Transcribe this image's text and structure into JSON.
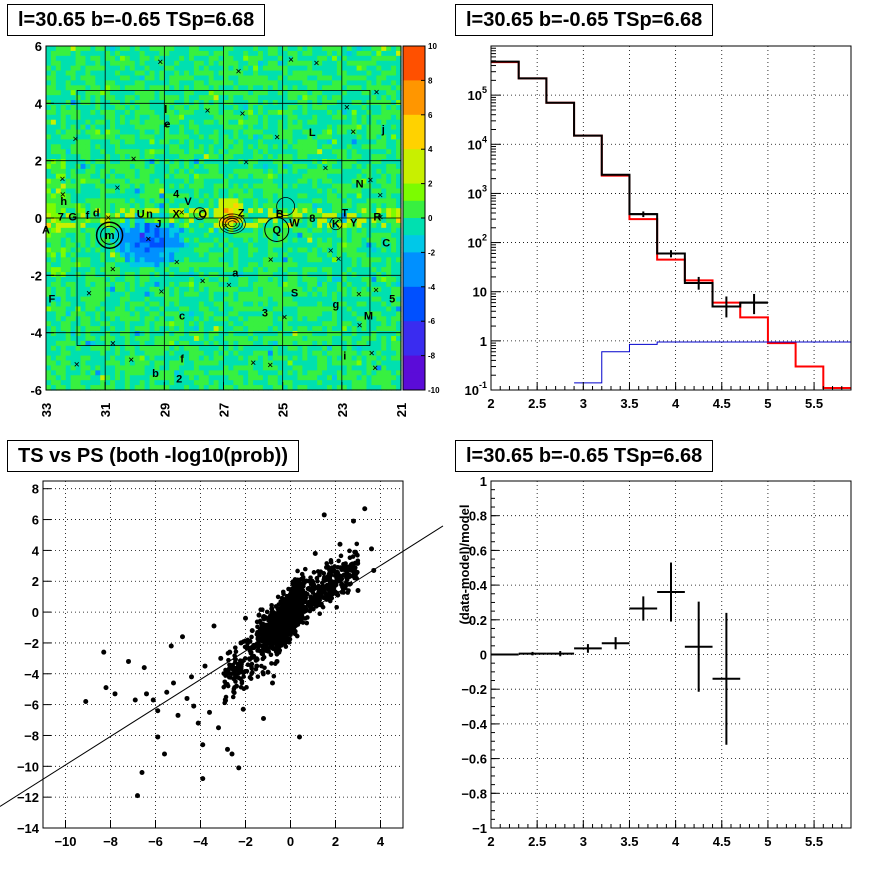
{
  "titles": {
    "p1": "l=30.65 b=-0.65 TSp=6.68",
    "p2": "l=30.65 b=-0.65 TSp=6.68",
    "p3": "TS vs PS (both -log10(prob))",
    "p4": "l=30.65 b=-0.65 TSp=6.68"
  },
  "colors": {
    "frame": "#000000",
    "grid": "#000000",
    "red": "#ff0000",
    "blue": "#0000cc",
    "bg": "#ffffff"
  },
  "chart_data": [
    {
      "type": "heatmap",
      "xlim": [
        33,
        21
      ],
      "ylim": [
        -6,
        6
      ],
      "x_ticks": [
        "33",
        "31",
        "29",
        "27",
        "25",
        "23",
        "21"
      ],
      "y_ticks": [
        "6",
        "4",
        "2",
        "0",
        "-2",
        "-4",
        "-6"
      ],
      "z_range": [
        -10,
        10
      ],
      "z_ticks": [
        "10",
        "8",
        "6",
        "4",
        "2",
        "0",
        "-2",
        "-4",
        "-6",
        "-8",
        "-10"
      ],
      "source_labels": [
        {
          "t": "A",
          "x": 33.0,
          "y": -0.4
        },
        {
          "t": "7",
          "x": 32.5,
          "y": 0.05
        },
        {
          "t": "G",
          "x": 32.1,
          "y": 0.05
        },
        {
          "t": "h",
          "x": 32.4,
          "y": 0.6
        },
        {
          "t": "f",
          "x": 31.6,
          "y": 0.1
        },
        {
          "t": "d",
          "x": 31.3,
          "y": 0.2
        },
        {
          "t": "m",
          "x": 30.85,
          "y": -0.6
        },
        {
          "t": "U",
          "x": 29.8,
          "y": 0.15
        },
        {
          "t": "n",
          "x": 29.5,
          "y": 0.15
        },
        {
          "t": "J",
          "x": 29.2,
          "y": -0.2
        },
        {
          "t": "X",
          "x": 28.6,
          "y": 0.15
        },
        {
          "t": "4",
          "x": 28.6,
          "y": 0.85
        },
        {
          "t": "V",
          "x": 28.2,
          "y": 0.6
        },
        {
          "t": "l",
          "x": 28.95,
          "y": 3.8
        },
        {
          "t": "e",
          "x": 28.9,
          "y": 3.3
        },
        {
          "t": "O",
          "x": 27.7,
          "y": 0.15
        },
        {
          "t": "Z",
          "x": 26.4,
          "y": 0.2
        },
        {
          "t": "B",
          "x": 25.1,
          "y": 0.15
        },
        {
          "t": "Q",
          "x": 25.2,
          "y": -0.4
        },
        {
          "t": "W",
          "x": 24.6,
          "y": -0.15
        },
        {
          "t": "8",
          "x": 24.0,
          "y": 0.0
        },
        {
          "t": "K",
          "x": 23.2,
          "y": -0.2
        },
        {
          "t": "T",
          "x": 22.9,
          "y": 0.2
        },
        {
          "t": "Y",
          "x": 22.6,
          "y": -0.15
        },
        {
          "t": "R",
          "x": 21.8,
          "y": 0.05
        },
        {
          "t": "C",
          "x": 21.5,
          "y": -0.85
        },
        {
          "t": "N",
          "x": 22.4,
          "y": 1.2
        },
        {
          "t": "L",
          "x": 24.0,
          "y": 3.0
        },
        {
          "t": "j",
          "x": 21.6,
          "y": 3.1
        },
        {
          "t": "F",
          "x": 32.8,
          "y": -2.8
        },
        {
          "t": "a",
          "x": 26.6,
          "y": -1.9
        },
        {
          "t": "S",
          "x": 24.6,
          "y": -2.6
        },
        {
          "t": "g",
          "x": 23.2,
          "y": -3.0
        },
        {
          "t": "5",
          "x": 21.3,
          "y": -2.8
        },
        {
          "t": "M",
          "x": 22.1,
          "y": -3.4
        },
        {
          "t": "3",
          "x": 25.6,
          "y": -3.3
        },
        {
          "t": "c",
          "x": 28.4,
          "y": -3.4
        },
        {
          "t": "f",
          "x": 28.4,
          "y": -4.9
        },
        {
          "t": "b",
          "x": 29.3,
          "y": -5.4
        },
        {
          "t": "2",
          "x": 28.5,
          "y": -5.6
        },
        {
          "t": "i",
          "x": 22.9,
          "y": -4.8
        }
      ]
    },
    {
      "type": "line",
      "title": "",
      "xlim": [
        2,
        5.9
      ],
      "ylim": [
        0.1,
        1000000
      ],
      "log_y": true,
      "x_ticks": [
        "2",
        "2.5",
        "3",
        "3.5",
        "4",
        "4.5",
        "5",
        "5.5"
      ],
      "y_ticks": [
        "10^{-1}",
        "1",
        "10",
        "10^{2}",
        "10^{3}",
        "10^{4}",
        "10^{5}"
      ],
      "series": [
        {
          "color": "red",
          "type": "step",
          "edges": [
            2.0,
            2.3,
            2.6,
            2.9,
            3.2,
            3.5,
            3.8,
            4.1,
            4.4,
            4.7,
            5.0,
            5.3,
            5.6,
            5.9
          ],
          "values": [
            470000,
            220000,
            70000,
            15000,
            2300,
            300,
            45,
            17,
            6,
            3,
            0.9,
            0.3,
            0.11
          ]
        },
        {
          "color": "black",
          "type": "step",
          "edges": [
            2.0,
            2.3,
            2.6,
            2.9,
            3.2,
            3.5,
            3.8,
            4.1,
            4.4,
            4.7,
            5.0
          ],
          "values": [
            480000,
            220000,
            70000,
            15000,
            2400,
            380,
            60,
            15,
            5,
            6
          ]
        },
        {
          "color": "blue",
          "type": "step",
          "edges": [
            2.9,
            3.2,
            3.5,
            3.8,
            5.9
          ],
          "values": [
            0.14,
            0.6,
            0.85,
            0.95
          ]
        }
      ],
      "points": [
        {
          "x": 3.65,
          "y": 380,
          "ex": 0.15,
          "ylo": 330,
          "yhi": 430
        },
        {
          "x": 3.95,
          "y": 60,
          "ex": 0.1,
          "ylo": 50,
          "yhi": 70
        },
        {
          "x": 4.25,
          "y": 15,
          "ex": 0.1,
          "ylo": 11,
          "yhi": 20
        },
        {
          "x": 4.55,
          "y": 5,
          "ex": 0.1,
          "ylo": 3,
          "yhi": 8
        },
        {
          "x": 4.85,
          "y": 6,
          "ex": 0.15,
          "ylo": 3.5,
          "yhi": 9
        }
      ]
    },
    {
      "type": "scatter",
      "title": "TS vs PS (both -log10(prob))",
      "xlim": [
        -11,
        5
      ],
      "ylim": [
        -14,
        8.5
      ],
      "x_ticks": [
        "-10",
        "-8",
        "-6",
        "-4",
        "-2",
        "0",
        "2",
        "4"
      ],
      "y_ticks": [
        "8",
        "6",
        "4",
        "2",
        "0",
        "-2",
        "-4",
        "-6",
        "-8",
        "-10",
        "-12",
        "-14"
      ],
      "fit_line": {
        "x": [
          -11.5,
          5.0
        ],
        "y": [
          -12.6,
          5.0
        ]
      },
      "outliers": [
        [
          -9.1,
          -5.8
        ],
        [
          -8.3,
          -2.6
        ],
        [
          -8.2,
          -4.9
        ],
        [
          -7.8,
          -5.3
        ],
        [
          -7.2,
          -3.2
        ],
        [
          -6.9,
          -5.7
        ],
        [
          -6.8,
          -11.9
        ],
        [
          -6.6,
          -10.4
        ],
        [
          -6.4,
          -5.3
        ],
        [
          -6.1,
          -5.7
        ],
        [
          -5.9,
          -6.4
        ],
        [
          -5.9,
          -8.1
        ],
        [
          -5.6,
          -9.2
        ],
        [
          -5.5,
          -5.2
        ],
        [
          -5.2,
          -4.6
        ],
        [
          -5.0,
          -6.7
        ],
        [
          -4.8,
          -1.6
        ],
        [
          -4.6,
          -5.6
        ],
        [
          -4.3,
          -6.1
        ],
        [
          -4.1,
          -7.2
        ],
        [
          -3.9,
          -8.6
        ],
        [
          -3.6,
          -6.5
        ],
        [
          -3.2,
          -7.5
        ],
        [
          -2.8,
          -8.9
        ],
        [
          -2.4,
          -4.8
        ],
        [
          -2.1,
          -6.3
        ],
        [
          -1.2,
          -6.9
        ],
        [
          0.4,
          -8.1
        ],
        [
          1.5,
          6.3
        ],
        [
          2.8,
          5.9
        ],
        [
          3.3,
          6.7
        ],
        [
          3.6,
          4.1
        ],
        [
          3.7,
          2.7
        ],
        [
          -2.6,
          -9.2
        ],
        [
          -3.9,
          -10.8
        ],
        [
          -2.3,
          -10.1
        ],
        [
          -6.5,
          -3.6
        ],
        [
          -5.3,
          -2.2
        ],
        [
          -3.4,
          -0.9
        ],
        [
          -2.0,
          -0.4
        ],
        [
          -1.7,
          -1.2
        ],
        [
          -1.4,
          -0.2
        ],
        [
          1.1,
          3.8
        ],
        [
          2.2,
          4.4
        ],
        [
          2.6,
          2.4
        ],
        [
          3.0,
          1.4
        ],
        [
          2.1,
          1.1
        ],
        [
          1.6,
          2.9
        ],
        [
          -4.4,
          -4.2
        ],
        [
          -3.8,
          -3.5
        ],
        [
          -3.1,
          -3.0
        ],
        [
          -2.7,
          -2.6
        ],
        [
          -2.2,
          -2.0
        ],
        [
          -1.8,
          -1.9
        ],
        [
          -1.5,
          -3.5
        ],
        [
          -1.0,
          -3.9
        ],
        [
          -0.8,
          -4.6
        ],
        [
          -0.6,
          -3.2
        ]
      ]
    },
    {
      "type": "scatter",
      "title": "",
      "ylabel": "(data-model)/model",
      "xlim": [
        2,
        5.9
      ],
      "ylim": [
        -1,
        1
      ],
      "x_ticks": [
        "2",
        "2.5",
        "3",
        "3.5",
        "4",
        "4.5",
        "5",
        "5.5"
      ],
      "y_ticks": [
        "1",
        "0.8",
        "0.6",
        "0.4",
        "0.2",
        "0",
        "-0.2",
        "-0.4",
        "-0.6",
        "-0.8",
        "-1"
      ],
      "points": [
        {
          "x": 2.15,
          "y": 0.0,
          "ex": 0.15,
          "ey": 0.005
        },
        {
          "x": 2.45,
          "y": 0.005,
          "ex": 0.15,
          "ey": 0.01
        },
        {
          "x": 2.75,
          "y": 0.005,
          "ex": 0.15,
          "ey": 0.015
        },
        {
          "x": 3.05,
          "y": 0.035,
          "ex": 0.15,
          "ey": 0.025
        },
        {
          "x": 3.35,
          "y": 0.065,
          "ex": 0.15,
          "ey": 0.035
        },
        {
          "x": 3.65,
          "y": 0.265,
          "ex": 0.15,
          "ey": 0.07
        },
        {
          "x": 3.95,
          "y": 0.36,
          "ex": 0.15,
          "ey": 0.17
        },
        {
          "x": 4.25,
          "y": 0.045,
          "ex": 0.15,
          "ey": 0.26
        },
        {
          "x": 4.55,
          "y": -0.14,
          "ex": 0.15,
          "ey": 0.38
        }
      ]
    }
  ]
}
